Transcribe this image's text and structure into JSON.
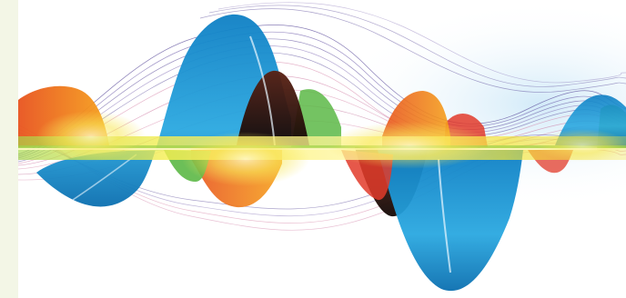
{
  "colors": {
    "side_panel": "#f3f6e6",
    "background": "#ffffff",
    "blue": "#1a9ad6",
    "orange": "#f08a1c",
    "red": "#e23b2a",
    "green": "#5cb846",
    "yellow": "#f6e53a",
    "dark": "#3a1a14",
    "line_purple": "#5a4a9a",
    "line_pink": "#d0709a",
    "glow": "#dff1fb"
  },
  "icons": {
    "artwork": "sound-wave-artwork"
  }
}
